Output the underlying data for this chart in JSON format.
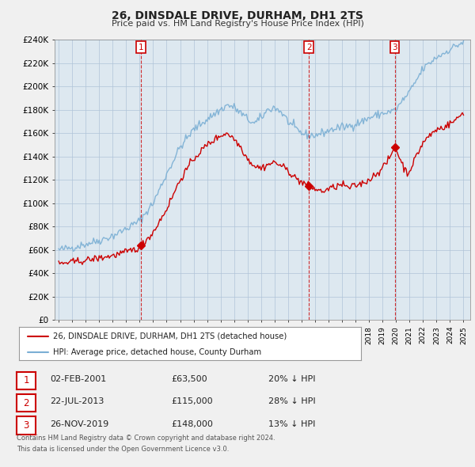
{
  "title": "26, DINSDALE DRIVE, DURHAM, DH1 2TS",
  "subtitle": "Price paid vs. HM Land Registry's House Price Index (HPI)",
  "ylim": [
    0,
    240000
  ],
  "yticks": [
    0,
    20000,
    40000,
    60000,
    80000,
    100000,
    120000,
    140000,
    160000,
    180000,
    200000,
    220000,
    240000
  ],
  "ytick_labels": [
    "£0",
    "£20K",
    "£40K",
    "£60K",
    "£80K",
    "£100K",
    "£120K",
    "£140K",
    "£160K",
    "£180K",
    "£200K",
    "£220K",
    "£240K"
  ],
  "sales": [
    {
      "num": 1,
      "date": "02-FEB-2001",
      "year": 2001.08,
      "price": 63500,
      "pct": "20%",
      "dir": "↓"
    },
    {
      "num": 2,
      "date": "22-JUL-2013",
      "year": 2013.55,
      "price": 115000,
      "pct": "28%",
      "dir": "↓"
    },
    {
      "num": 3,
      "date": "26-NOV-2019",
      "year": 2019.9,
      "price": 148000,
      "pct": "13%",
      "dir": "↓"
    }
  ],
  "legend_line1": "26, DINSDALE DRIVE, DURHAM, DH1 2TS (detached house)",
  "legend_line2": "HPI: Average price, detached house, County Durham",
  "footnote1": "Contains HM Land Registry data © Crown copyright and database right 2024.",
  "footnote2": "This data is licensed under the Open Government Licence v3.0.",
  "red_color": "#cc0000",
  "blue_color": "#7aafd4",
  "bg_color": "#f0f0f0",
  "plot_bg": "#dde8f0",
  "grid_color": "#b0c4d8"
}
